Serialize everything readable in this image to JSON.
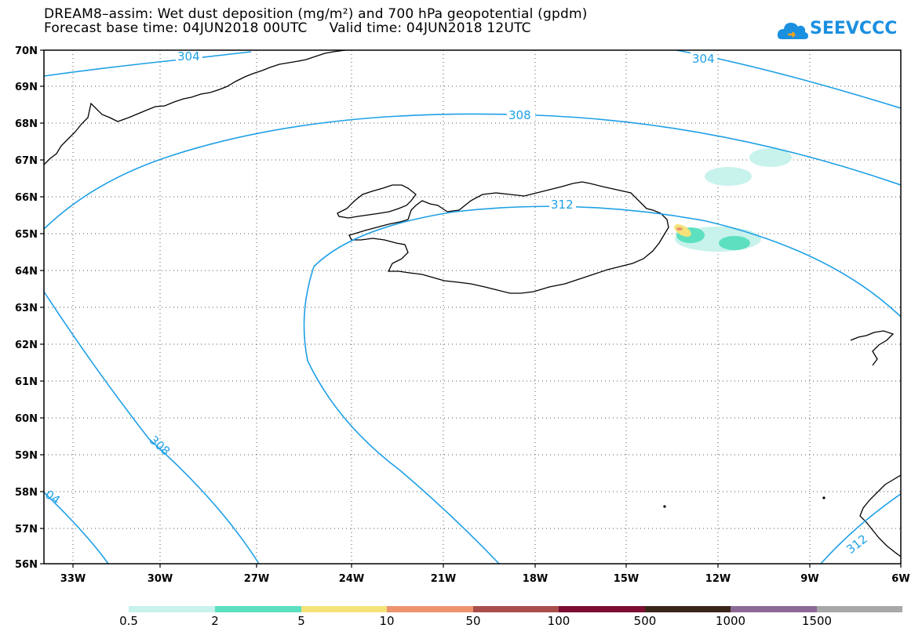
{
  "title_line1": "DREAM8–assim: Wet dust deposition (mg/m²) and 700 hPa geopotential (gpdm)",
  "title_line2": "Forecast base time: 04JUN2018 00UTC     Valid time: 04JUN2018 12UTC",
  "logo_text": "SEEVCCC",
  "map": {
    "lat_labels": [
      "70N",
      "69N",
      "68N",
      "67N",
      "66N",
      "65N",
      "64N",
      "63N",
      "62N",
      "61N",
      "60N",
      "59N",
      "58N",
      "57N",
      "56N"
    ],
    "lon_labels": [
      "33W",
      "30W",
      "27W",
      "24W",
      "21W",
      "18W",
      "15W",
      "12W",
      "9W",
      "6W"
    ],
    "contour_labels": [
      {
        "text": "304",
        "id": "c304a"
      },
      {
        "text": "304",
        "id": "c304b"
      },
      {
        "text": "308",
        "id": "c308a"
      },
      {
        "text": "308",
        "id": "c308b"
      },
      {
        "text": "312",
        "id": "c312a"
      },
      {
        "text": "04",
        "id": "c304c"
      },
      {
        "text": "312",
        "id": "c312b"
      }
    ],
    "contour_color": "#1ea0e6"
  },
  "legend": {
    "colors": [
      "#c8f2ec",
      "#5de0c0",
      "#f5e37a",
      "#ec9470",
      "#a84f4b",
      "#7c0c30",
      "#3a2519",
      "#8c6a96",
      "#a8a8a8"
    ],
    "labels": [
      "0.5",
      "2",
      "5",
      "10",
      "50",
      "100",
      "500",
      "1000",
      "1500"
    ]
  }
}
